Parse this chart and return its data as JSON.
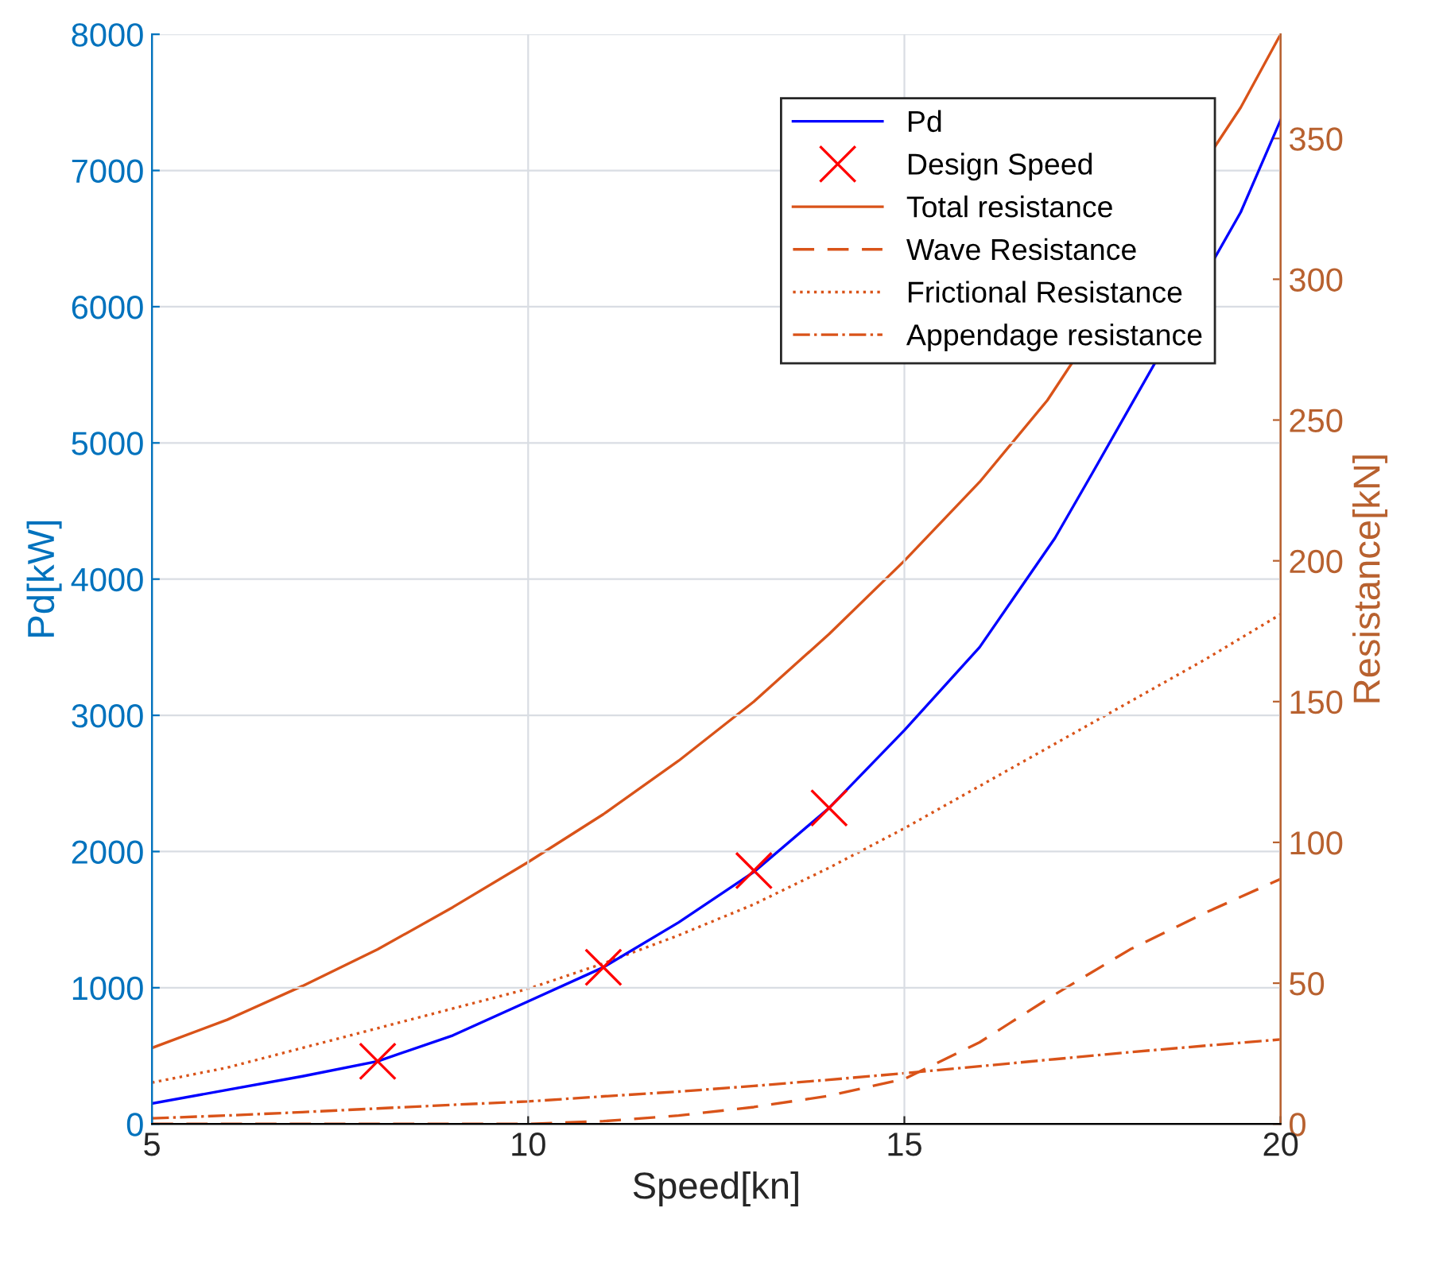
{
  "chart_data": {
    "type": "line",
    "xlabel": "Speed[kn]",
    "ylabel": "Pd[kW]",
    "y2label": "Resistance[kN]",
    "xlim": [
      5,
      20
    ],
    "xticks": [
      5,
      10,
      15,
      20
    ],
    "ylim": [
      0,
      8000
    ],
    "yticks": [
      0,
      1000,
      2000,
      3000,
      4000,
      5000,
      6000,
      7000,
      8000
    ],
    "y2lim": [
      0,
      387
    ],
    "y2ticks": [
      0,
      50,
      100,
      150,
      200,
      250,
      300,
      350
    ],
    "grid": true,
    "legend": "top right",
    "series": [
      {
        "name": "Pd",
        "type": "line",
        "color": "#0000ff",
        "line_style": "solid",
        "marker": "none",
        "x": [
          5,
          6,
          7,
          8,
          9,
          10,
          11,
          12,
          13,
          14,
          15,
          16,
          17,
          17.5,
          19.47,
          20
        ],
        "values": [
          150,
          250,
          350,
          460,
          650,
          900,
          1150,
          1480,
          1850,
          2320,
          2890,
          3500,
          4300,
          4780,
          6694,
          7370
        ]
      },
      {
        "name": "Design Speed",
        "type": "scatter",
        "color": "#ff0000",
        "marker": "cross",
        "x": [
          8,
          11,
          13,
          14
        ],
        "values": [
          460,
          1150,
          1860,
          2320
        ]
      },
      {
        "name": "Total resistance",
        "axis": "y2",
        "color": "#d95319",
        "line_style": "solid",
        "marker": "none",
        "x": [
          5,
          6,
          7,
          8,
          9,
          10,
          11,
          12,
          13,
          14,
          15,
          16,
          16.9,
          19.47,
          20
        ],
        "values": [
          27,
          37,
          49,
          62,
          77,
          93,
          110,
          129,
          150,
          174,
          200,
          228,
          257,
          361,
          387
        ]
      },
      {
        "name": "Wave Resistance",
        "axis": "y2",
        "color": "#d95319",
        "line_style": "dashed",
        "marker": "none",
        "x": [
          5,
          6,
          7,
          8,
          9,
          10,
          11,
          12,
          13,
          14,
          15,
          16,
          17,
          18,
          19,
          20
        ],
        "values": [
          0,
          0,
          0,
          0,
          0,
          0,
          1,
          3,
          6,
          10,
          16,
          29,
          46,
          62,
          75,
          87
        ]
      },
      {
        "name": "Frictional Resistance",
        "axis": "y2",
        "color": "#d95319",
        "line_style": "dotted",
        "marker": "none",
        "x": [
          5,
          6,
          7,
          8,
          9,
          10,
          11,
          12,
          13,
          14,
          15,
          16,
          17,
          18,
          19,
          20
        ],
        "values": [
          14.7,
          20,
          27,
          34,
          41,
          48,
          57,
          67,
          78,
          91,
          105,
          120,
          135,
          150,
          165,
          181
        ]
      },
      {
        "name": "Appendage resistance",
        "axis": "y2",
        "color": "#d95319",
        "line_style": "dashdot",
        "marker": "none",
        "x": [
          5,
          6,
          7,
          8,
          9,
          10,
          11,
          12,
          13,
          14,
          15,
          16,
          17,
          18,
          19,
          20
        ],
        "values": [
          2,
          3,
          4.2,
          5.5,
          6.8,
          8,
          9.8,
          11.5,
          13.5,
          15.7,
          18,
          20.5,
          23,
          25.5,
          27.8,
          30
        ]
      }
    ]
  }
}
